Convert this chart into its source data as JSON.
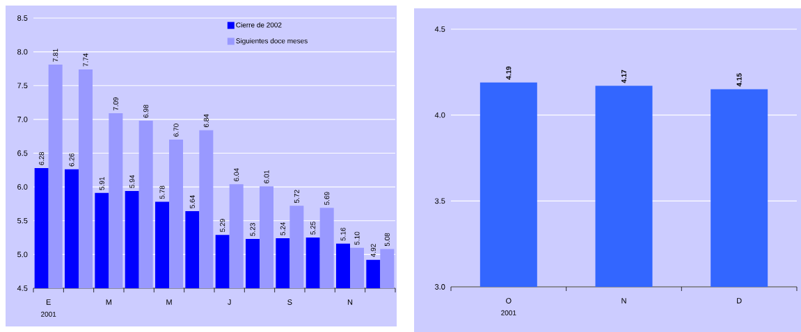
{
  "chart_data": [
    {
      "type": "bar",
      "categories": [
        "E",
        null,
        "M",
        null,
        "M",
        null,
        "J",
        null,
        "S",
        null,
        "N",
        null
      ],
      "series": [
        {
          "name": "Cierre de 2002",
          "color": "#0000ff",
          "values": [
            6.28,
            6.26,
            5.91,
            5.94,
            5.78,
            5.64,
            5.29,
            5.23,
            5.24,
            5.25,
            5.16,
            4.92
          ],
          "value_labels": [
            "6.28",
            "6.26",
            "5.91",
            "5.94",
            "5.78",
            "5.64",
            "5.29",
            "5.23",
            "5.24",
            "5.25",
            "5.16",
            "4.92"
          ]
        },
        {
          "name": "Siguientes doce meses",
          "color": "#9999ff",
          "values": [
            7.81,
            7.74,
            7.09,
            6.98,
            6.7,
            6.84,
            6.04,
            6.01,
            5.72,
            5.69,
            5.1,
            5.08
          ],
          "value_labels": [
            "7.81",
            "7.74",
            "7.09",
            "6.98",
            "6.70",
            "6.84",
            "6.04",
            "6.01",
            "5.72",
            "5.69",
            "5.10",
            "5.08"
          ]
        }
      ],
      "ylim": [
        4.5,
        8.5
      ],
      "yticks": [
        {
          "value": 4.5,
          "label": "4.5"
        },
        {
          "value": 5,
          "label": "5.0"
        },
        {
          "value": 5.5,
          "label": "5.5"
        },
        {
          "value": 6,
          "label": "6.0"
        },
        {
          "value": 6.5,
          "label": "6.5"
        },
        {
          "value": 7,
          "label": "7.0"
        },
        {
          "value": 7.5,
          "label": "7.5"
        },
        {
          "value": 8,
          "label": "8.0"
        },
        {
          "value": 8.5,
          "label": "8.5"
        }
      ],
      "grid": "y",
      "legend": "top right",
      "annotations": [
        "2001"
      ]
    },
    {
      "type": "bar",
      "categories": [
        "O",
        "N",
        "D"
      ],
      "values": [
        4.19,
        4.17,
        4.15
      ],
      "value_labels": [
        "4.19",
        "4.17",
        "4.15"
      ],
      "color": "#3366ff",
      "ylim": [
        3,
        4.5
      ],
      "yticks": [
        {
          "value": 3,
          "label": "3.0"
        },
        {
          "value": 3.5,
          "label": "3.5"
        },
        {
          "value": 4,
          "label": "4.0"
        },
        {
          "value": 4.5,
          "label": "4.5"
        }
      ],
      "grid": "y",
      "annotations": [
        "2001"
      ]
    }
  ]
}
